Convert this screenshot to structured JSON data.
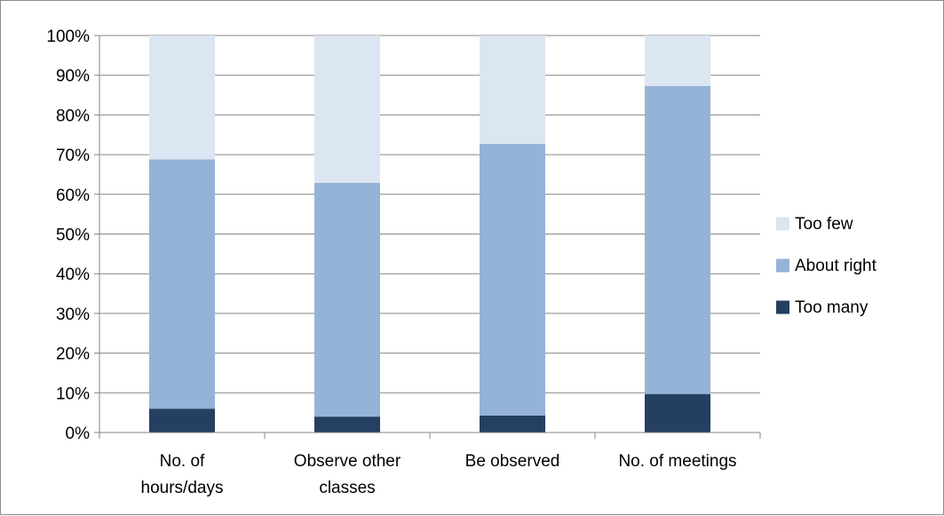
{
  "chart_data": {
    "type": "bar",
    "stacked": true,
    "percent_stacked": true,
    "categories": [
      [
        "No. of",
        "hours/days"
      ],
      [
        "Observe other",
        "classes"
      ],
      [
        "Be observed"
      ],
      [
        "No. of meetings"
      ]
    ],
    "series": [
      {
        "name": "Too many",
        "color": "#243f60",
        "values": [
          6,
          4,
          4.3,
          9.7
        ]
      },
      {
        "name": "About right",
        "color": "#95b3d7",
        "values": [
          62.8,
          58.9,
          68.4,
          77.6
        ]
      },
      {
        "name": "Too few",
        "color": "#dce6f2",
        "values": [
          31.2,
          37.1,
          27.3,
          12.7
        ]
      }
    ],
    "ylim": [
      0,
      100
    ],
    "yticks": [
      "0%",
      "10%",
      "20%",
      "30%",
      "40%",
      "50%",
      "60%",
      "70%",
      "80%",
      "90%",
      "100%"
    ],
    "grid": true,
    "legend": {
      "position": "right",
      "order": [
        "Too few",
        "About right",
        "Too many"
      ]
    }
  }
}
